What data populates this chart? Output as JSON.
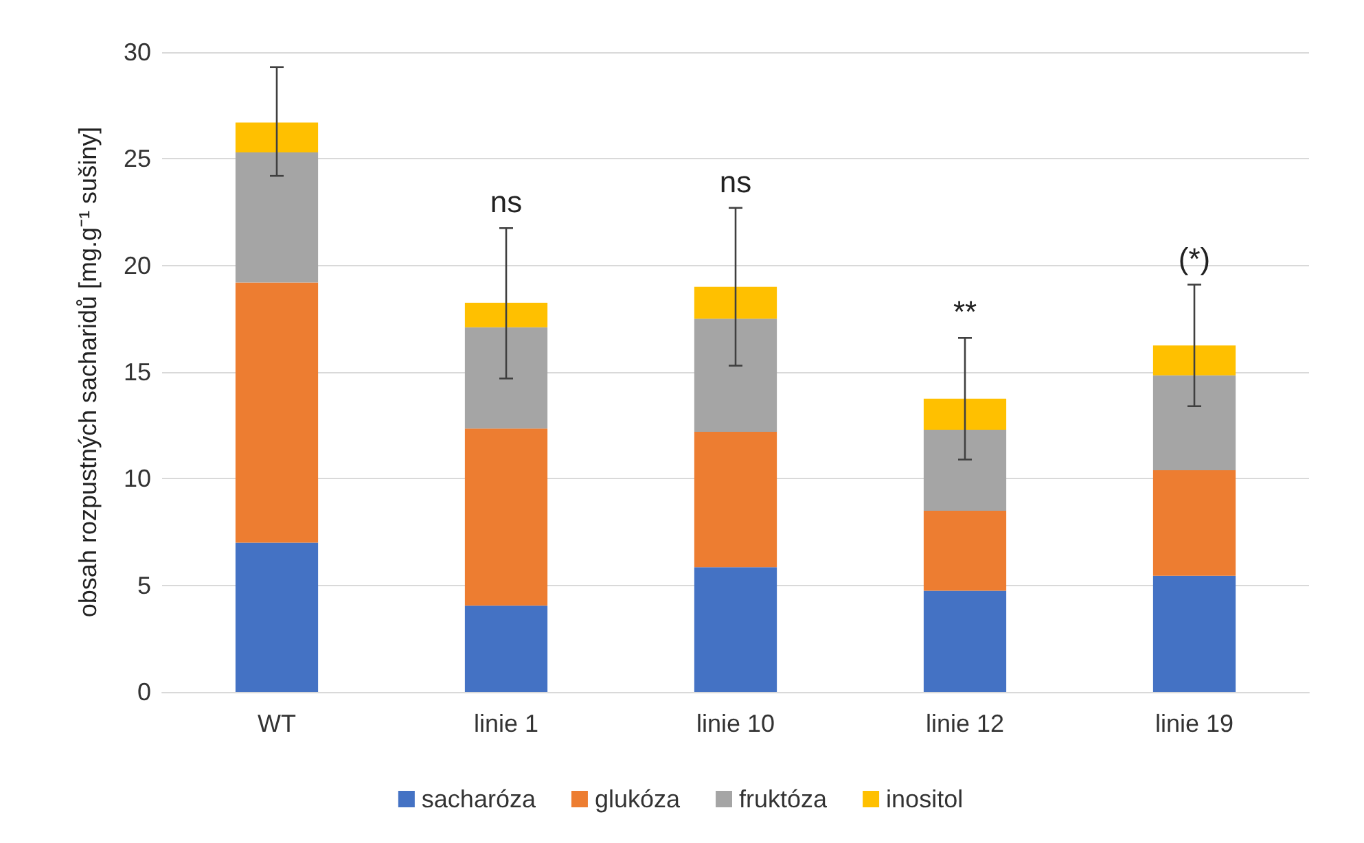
{
  "chart_data": {
    "type": "bar",
    "stacked": true,
    "ylabel": "obsah rozpustných sacharidů [mg.g⁻¹ sušiny]",
    "categories": [
      "WT",
      "linie 1",
      "linie 10",
      "linie 12",
      "linie 19"
    ],
    "series": [
      {
        "name": "sacharóza",
        "color": "#4472c4",
        "values": [
          7.0,
          4.05,
          5.85,
          4.75,
          5.45
        ]
      },
      {
        "name": "glukóza",
        "color": "#ed7d31",
        "values": [
          12.2,
          8.3,
          6.35,
          3.75,
          4.95
        ]
      },
      {
        "name": "fruktóza",
        "color": "#a5a5a5",
        "values": [
          6.1,
          4.75,
          5.3,
          3.8,
          4.45
        ]
      },
      {
        "name": "inositol",
        "color": "#ffc000",
        "values": [
          1.4,
          1.15,
          1.5,
          1.45,
          1.4
        ],
        "errors": [
          [
            24.2,
            29.3
          ],
          [
            14.7,
            21.75
          ],
          [
            15.3,
            22.7
          ],
          [
            10.9,
            16.6
          ],
          [
            13.4,
            19.1
          ]
        ]
      }
    ],
    "ylim": [
      0,
      30
    ],
    "yticks": [
      0,
      5,
      10,
      15,
      20,
      25,
      30
    ],
    "grid": "y",
    "legend": "bottom",
    "annotations": [
      {
        "text": "ns",
        "x": "linie 1",
        "y": 21.75
      },
      {
        "text": "ns",
        "x": "linie 10",
        "y": 22.7
      },
      {
        "text": "**",
        "x": "linie 12",
        "y": 16.6
      },
      {
        "text": "(*)",
        "x": "linie 19",
        "y": 19.1
      }
    ]
  }
}
